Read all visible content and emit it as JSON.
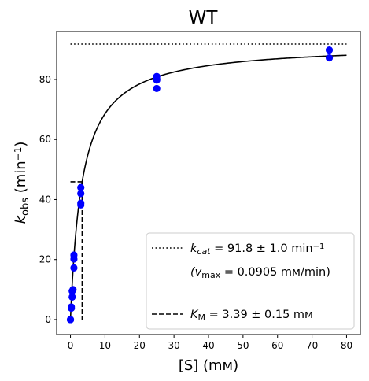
{
  "chart_data": {
    "type": "scatter",
    "title": "WT",
    "xlabel": "[S] (mᴍ)",
    "ylabel": {
      "base": "k",
      "sub": "obs",
      "rest": " (min",
      "sup": "−1",
      "close": ")"
    },
    "xlim": [
      -4,
      84
    ],
    "ylim": [
      -5,
      96
    ],
    "xticks": [
      "0",
      "10",
      "20",
      "30",
      "40",
      "50",
      "60",
      "70",
      "80"
    ],
    "yticks": [
      "0",
      "20",
      "40",
      "60",
      "80"
    ],
    "grid": false,
    "legend_position": "lower-right",
    "colors": {
      "points": "#0000ff",
      "fit": "#000000",
      "frame": "#000000"
    },
    "series": [
      {
        "kind": "points",
        "x": [
          0,
          0,
          0.25,
          0.25,
          0.5,
          0.5,
          0.75,
          1,
          1,
          1,
          3,
          3,
          3,
          3,
          25,
          25,
          25,
          25,
          75,
          75
        ],
        "y": [
          0,
          0,
          3.8,
          4.2,
          7.5,
          9.5,
          10,
          17.2,
          20.2,
          21.5,
          38.2,
          38.8,
          42,
          44,
          77,
          79.8,
          80.2,
          81,
          87.2,
          89.8
        ]
      },
      {
        "kind": "fit",
        "model": "michaelis-menten",
        "kcat": 91.8,
        "km": 3.39,
        "x_range": [
          0,
          80
        ]
      },
      {
        "kind": "kcat-line",
        "y": 91.8,
        "x_range": [
          0,
          80
        ]
      },
      {
        "kind": "km-line",
        "x": 3.39,
        "y": 45.9,
        "x_start": 0
      }
    ],
    "legend": [
      {
        "style": "dotted",
        "prefix": "k",
        "sub": "cat",
        "text": " = 91.8 ± 1.0 min",
        "sup": "−1"
      },
      {
        "style": "none",
        "open": "(v",
        "sub": "max",
        "text": " = 0.0905 mᴍ/min)"
      },
      {
        "style": "dashed",
        "prefix": "K",
        "sub": "M",
        "text": " = 3.39 ± 0.15 mᴍ"
      }
    ]
  }
}
